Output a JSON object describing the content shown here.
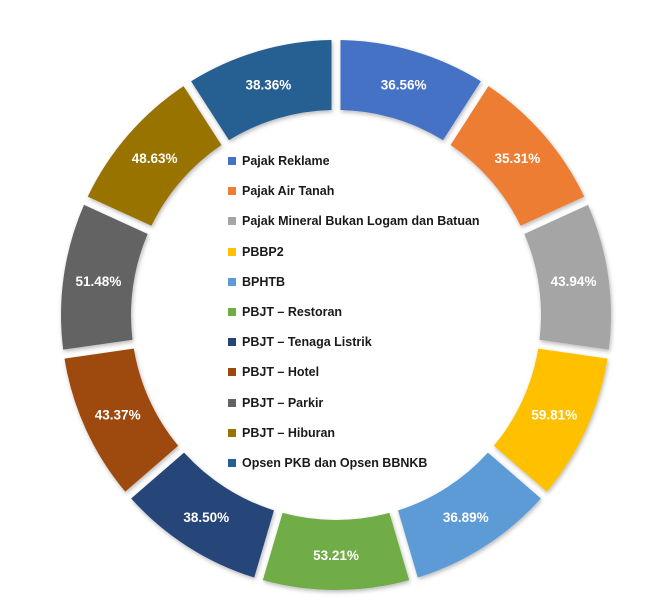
{
  "chart_data": {
    "type": "pie",
    "variant": "donut",
    "start_angle_deg": 0,
    "direction": "clockwise",
    "legend_position": "center",
    "series": [
      {
        "name": "Pajak Reklame",
        "value": 36.56,
        "label": "36.56%",
        "color": "#4472C4"
      },
      {
        "name": "Pajak Air Tanah",
        "value": 35.31,
        "label": "35.31%",
        "color": "#ED7D31"
      },
      {
        "name": "Pajak Mineral Bukan Logam dan Batuan",
        "value": 43.94,
        "label": "43.94%",
        "color": "#A5A5A5"
      },
      {
        "name": "PBBP2",
        "value": 59.81,
        "label": "59.81%",
        "color": "#FFC000"
      },
      {
        "name": "BPHTB",
        "value": 36.89,
        "label": "36.89%",
        "color": "#5B9BD5"
      },
      {
        "name": "PBJT – Restoran",
        "value": 53.21,
        "label": "53.21%",
        "color": "#70AD47"
      },
      {
        "name": "PBJT – Tenaga Listrik",
        "value": 38.5,
        "label": "38.50%",
        "color": "#264478"
      },
      {
        "name": "PBJT – Hotel",
        "value": 43.37,
        "label": "43.37%",
        "color": "#9E480E"
      },
      {
        "name": "PBJT – Parkir",
        "value": 51.48,
        "label": "51.48%",
        "color": "#636363"
      },
      {
        "name": "PBJT – Hiburan",
        "value": 48.63,
        "label": "48.63%",
        "color": "#997300"
      },
      {
        "name": "Opsen PKB dan Opsen BBNKB",
        "value": 38.36,
        "label": "38.36%",
        "color": "#255E91"
      }
    ]
  }
}
